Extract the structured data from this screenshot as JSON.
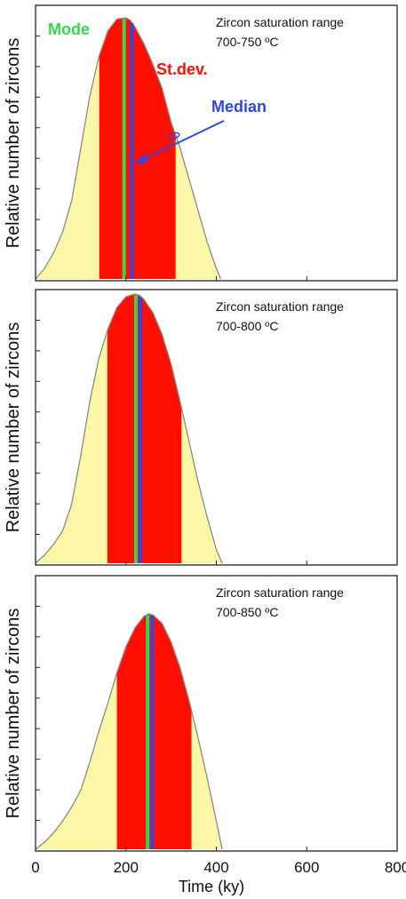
{
  "colors": {
    "tail": "#fbf7a7",
    "stdev": "#ff0f00",
    "mode": "#33d84c",
    "median": "#2f46e5",
    "outline": "#8a8a8a",
    "frame": "#222222",
    "text": "#111111"
  },
  "x_axis": {
    "label": "Time (ky)",
    "ticks": [
      0,
      200,
      400,
      600,
      800
    ],
    "tick_labels": [
      "0",
      "200",
      "400",
      "600",
      "800"
    ]
  },
  "ylabel": "Relative number of zircons",
  "annotations": {
    "mode": "Mode",
    "stdev": "St.dev.",
    "median": "Median"
  },
  "chart_data": [
    {
      "type": "area",
      "title_line1": "Zircon saturation range",
      "title_line2": "700-750 ºC",
      "xlim": [
        0,
        800
      ],
      "ylim": [
        0,
        1
      ],
      "grid": false,
      "x": [
        0,
        20,
        40,
        60,
        80,
        100,
        120,
        140,
        160,
        180,
        200,
        210,
        220,
        240,
        260,
        280,
        300,
        320,
        340,
        360,
        380,
        400,
        410
      ],
      "y": [
        0,
        0.04,
        0.1,
        0.18,
        0.3,
        0.5,
        0.7,
        0.85,
        0.95,
        0.995,
        1.0,
        0.99,
        0.965,
        0.9,
        0.82,
        0.73,
        0.6,
        0.5,
        0.38,
        0.26,
        0.14,
        0.04,
        0
      ],
      "mode": 196,
      "median": 213,
      "stdev_range": [
        141,
        310
      ]
    },
    {
      "type": "area",
      "title_line1": "Zircon saturation range",
      "title_line2": "700-800 ºC",
      "xlim": [
        0,
        800
      ],
      "ylim": [
        0,
        1
      ],
      "grid": false,
      "x": [
        0,
        20,
        40,
        60,
        80,
        100,
        120,
        140,
        160,
        180,
        200,
        220,
        230,
        240,
        260,
        280,
        300,
        320,
        340,
        360,
        380,
        400,
        413
      ],
      "y": [
        0,
        0.03,
        0.07,
        0.12,
        0.22,
        0.4,
        0.6,
        0.76,
        0.87,
        0.95,
        0.99,
        1.0,
        0.995,
        0.98,
        0.93,
        0.85,
        0.74,
        0.6,
        0.45,
        0.3,
        0.17,
        0.05,
        0
      ],
      "mode": 222,
      "median": 232,
      "stdev_range": [
        159,
        323
      ]
    },
    {
      "type": "area",
      "title_line1": "Zircon saturation range",
      "title_line2": "700-850 ºC",
      "xlim": [
        0,
        800
      ],
      "ylim": [
        0,
        1
      ],
      "grid": false,
      "x": [
        0,
        20,
        40,
        60,
        80,
        100,
        120,
        140,
        160,
        180,
        200,
        220,
        240,
        250,
        260,
        280,
        300,
        320,
        340,
        360,
        380,
        400,
        413
      ],
      "y": [
        0,
        0.03,
        0.07,
        0.12,
        0.18,
        0.25,
        0.37,
        0.5,
        0.62,
        0.75,
        0.86,
        0.94,
        0.99,
        1.0,
        0.995,
        0.96,
        0.88,
        0.77,
        0.63,
        0.47,
        0.3,
        0.12,
        0
      ],
      "mode": 248,
      "median": 258,
      "stdev_range": [
        180,
        345
      ]
    }
  ]
}
